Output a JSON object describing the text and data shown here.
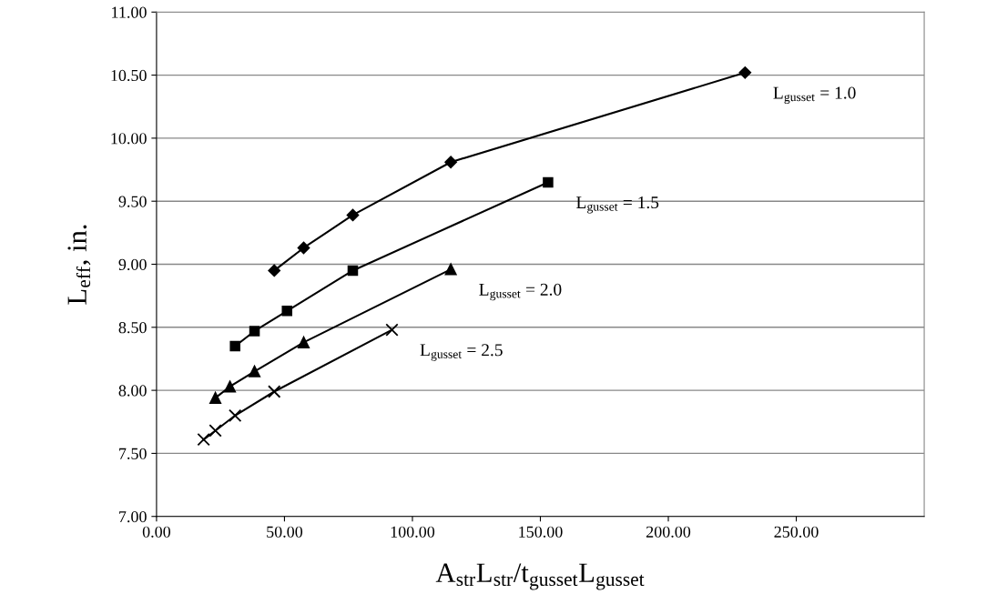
{
  "chart_data": {
    "type": "line",
    "xlabel": "A$_{str}$L$_{str}$/t$_{gusset}$L$_{gusset}$",
    "ylabel": "L$_{eff}$, in.",
    "grid": "y",
    "line_style": "solid",
    "xlim": [
      0,
      300
    ],
    "xticks": [
      {
        "value": 0,
        "label": "0.00"
      },
      {
        "value": 50,
        "label": "50.00"
      },
      {
        "value": 100,
        "label": "100.00"
      },
      {
        "value": 150,
        "label": "150.00"
      },
      {
        "value": 200,
        "label": "200.00"
      },
      {
        "value": 250,
        "label": "250.00"
      }
    ],
    "ylim": [
      7,
      11
    ],
    "yticks": [
      {
        "value": 7,
        "label": "7.00"
      },
      {
        "value": 7.5,
        "label": "7.50"
      },
      {
        "value": 8,
        "label": "8.00"
      },
      {
        "value": 8.5,
        "label": "8.50"
      },
      {
        "value": 9,
        "label": "9.00"
      },
      {
        "value": 9.5,
        "label": "9.50"
      },
      {
        "value": 10,
        "label": "10.00"
      },
      {
        "value": 10.5,
        "label": "10.50"
      },
      {
        "value": 11,
        "label": "11.00"
      }
    ],
    "series": [
      {
        "name": "L$_{gusset}$ = 1.0",
        "color": "#000000",
        "marker": "diamond",
        "x": [
          46,
          57.5,
          76.7,
          115,
          230
        ],
        "values": [
          8.95,
          9.13,
          9.39,
          9.81,
          10.52
        ]
      },
      {
        "name": "L$_{gusset}$ = 1.5",
        "color": "#000000",
        "marker": "square",
        "x": [
          30.7,
          38.3,
          51,
          76.7,
          153
        ],
        "values": [
          8.35,
          8.47,
          8.63,
          8.95,
          9.65
        ]
      },
      {
        "name": "L$_{gusset}$ = 2.0",
        "color": "#000000",
        "marker": "triangle",
        "x": [
          23,
          28.7,
          38.3,
          57.5,
          115
        ],
        "values": [
          7.94,
          8.03,
          8.15,
          8.38,
          8.96
        ]
      },
      {
        "name": "L$_{gusset}$ = 2.5",
        "color": "#000000",
        "marker": "cross",
        "x": [
          18.4,
          23,
          30.7,
          46,
          92
        ],
        "values": [
          7.61,
          7.68,
          7.8,
          7.99,
          8.48
        ]
      }
    ]
  }
}
